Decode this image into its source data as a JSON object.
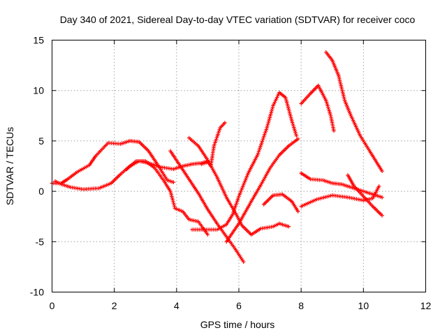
{
  "chart_data": {
    "type": "scatter",
    "title": "Day 340 of 2021, Sidereal Day-to-day VTEC variation (SDTVAR) for receiver coco",
    "xlabel": "GPS time / hours",
    "ylabel": "SDTVAR / TECUs",
    "xlim": [
      0,
      12
    ],
    "ylim": [
      -10,
      15
    ],
    "xticks": [
      0,
      2,
      4,
      6,
      8,
      10,
      12
    ],
    "yticks": [
      -10,
      -5,
      0,
      5,
      10,
      15
    ],
    "grid": true,
    "marker": "plus",
    "color": "#ff0000",
    "series": [
      {
        "name": "arc1",
        "points": [
          [
            0,
            0.8
          ],
          [
            0.3,
            0.8
          ],
          [
            0.5,
            1.2
          ],
          [
            0.8,
            1.9
          ],
          [
            1.2,
            2.6
          ],
          [
            1.4,
            3.5
          ],
          [
            1.8,
            4.8
          ],
          [
            2.2,
            4.7
          ],
          [
            2.5,
            5.0
          ],
          [
            2.8,
            4.9
          ],
          [
            3.1,
            4.0
          ],
          [
            3.4,
            2.6
          ],
          [
            3.7,
            1.1
          ],
          [
            3.9,
            0.9
          ]
        ]
      },
      {
        "name": "arc2",
        "points": [
          [
            0.1,
            1.0
          ],
          [
            0.3,
            0.7
          ],
          [
            0.6,
            0.4
          ],
          [
            1.0,
            0.2
          ],
          [
            1.5,
            0.3
          ],
          [
            1.9,
            0.8
          ],
          [
            2.2,
            1.7
          ],
          [
            2.5,
            2.5
          ],
          [
            2.8,
            3.0
          ],
          [
            3.1,
            2.8
          ],
          [
            3.5,
            2.4
          ],
          [
            3.9,
            2.2
          ],
          [
            4.2,
            2.5
          ],
          [
            4.5,
            2.7
          ],
          [
            4.8,
            2.8
          ],
          [
            5.0,
            3.0
          ]
        ]
      },
      {
        "name": "arc3",
        "points": [
          [
            2.4,
            2.2
          ],
          [
            2.7,
            3.0
          ],
          [
            3.0,
            3.0
          ],
          [
            3.3,
            2.3
          ],
          [
            3.6,
            1.0
          ],
          [
            3.8,
            0.0
          ],
          [
            3.95,
            -1.7
          ],
          [
            4.2,
            -2.0
          ],
          [
            4.4,
            -2.8
          ],
          [
            4.7,
            -3.0
          ],
          [
            5.0,
            -4.3
          ]
        ]
      },
      {
        "name": "arc4",
        "points": [
          [
            3.8,
            4.0
          ],
          [
            4.1,
            2.6
          ],
          [
            4.4,
            1.2
          ],
          [
            4.7,
            -0.2
          ],
          [
            5.0,
            -1.8
          ],
          [
            5.3,
            -3.2
          ],
          [
            5.6,
            -4.5
          ],
          [
            5.9,
            -5.8
          ],
          [
            6.15,
            -7.0
          ]
        ]
      },
      {
        "name": "arc5",
        "points": [
          [
            4.4,
            5.3
          ],
          [
            4.7,
            4.5
          ],
          [
            5.0,
            3.1
          ],
          [
            5.3,
            1.4
          ],
          [
            5.6,
            -0.6
          ],
          [
            5.9,
            -2.2
          ],
          [
            6.1,
            -3.4
          ],
          [
            6.4,
            -4.3
          ],
          [
            6.7,
            -3.7
          ],
          [
            7.1,
            -3.5
          ],
          [
            7.3,
            -3.2
          ],
          [
            7.6,
            -3.5
          ]
        ]
      },
      {
        "name": "arc6",
        "points": [
          [
            4.8,
            2.7
          ],
          [
            5.0,
            2.9
          ],
          [
            5.1,
            2.5
          ],
          [
            5.2,
            4.5
          ],
          [
            5.4,
            6.3
          ],
          [
            5.55,
            6.8
          ]
        ]
      },
      {
        "name": "arc7",
        "points": [
          [
            4.5,
            -3.8
          ],
          [
            4.9,
            -3.8
          ],
          [
            5.3,
            -3.8
          ],
          [
            5.6,
            -3.3
          ],
          [
            5.8,
            -2.3
          ],
          [
            6.0,
            -0.5
          ],
          [
            6.3,
            1.8
          ],
          [
            6.6,
            3.6
          ],
          [
            6.9,
            6.3
          ],
          [
            7.1,
            8.5
          ],
          [
            7.3,
            9.8
          ],
          [
            7.5,
            9.3
          ],
          [
            7.7,
            7.0
          ],
          [
            7.85,
            5.5
          ]
        ]
      },
      {
        "name": "arc8",
        "points": [
          [
            5.6,
            -5.0
          ],
          [
            6.0,
            -3.2
          ],
          [
            6.4,
            -1.0
          ],
          [
            6.7,
            0.6
          ],
          [
            7.0,
            2.3
          ],
          [
            7.3,
            3.6
          ],
          [
            7.6,
            4.5
          ],
          [
            7.9,
            5.2
          ]
        ]
      },
      {
        "name": "arc9",
        "points": [
          [
            6.8,
            -1.3
          ],
          [
            7.1,
            -0.4
          ],
          [
            7.4,
            -0.3
          ],
          [
            7.7,
            -1.0
          ],
          [
            7.9,
            -2.0
          ]
        ]
      },
      {
        "name": "arc10",
        "points": [
          [
            8.0,
            8.7
          ],
          [
            8.3,
            9.7
          ],
          [
            8.55,
            10.5
          ],
          [
            8.8,
            9.0
          ],
          [
            8.95,
            7.5
          ],
          [
            9.05,
            6.0
          ]
        ]
      },
      {
        "name": "arc11",
        "points": [
          [
            8.8,
            13.8
          ],
          [
            9.0,
            13.0
          ],
          [
            9.2,
            11.5
          ],
          [
            9.4,
            9.0
          ],
          [
            9.6,
            7.5
          ],
          [
            9.9,
            5.5
          ],
          [
            10.2,
            4.0
          ],
          [
            10.4,
            3.0
          ],
          [
            10.6,
            2.0
          ]
        ]
      },
      {
        "name": "arc12",
        "points": [
          [
            8.0,
            1.8
          ],
          [
            8.3,
            1.2
          ],
          [
            8.7,
            1.1
          ],
          [
            9.0,
            0.8
          ],
          [
            9.3,
            0.7
          ],
          [
            9.6,
            0.4
          ],
          [
            10.0,
            0.0
          ],
          [
            10.3,
            -0.3
          ],
          [
            10.6,
            -0.6
          ]
        ]
      },
      {
        "name": "arc13",
        "points": [
          [
            8.0,
            -1.5
          ],
          [
            8.5,
            -0.8
          ],
          [
            9.0,
            -0.4
          ],
          [
            9.5,
            -0.6
          ],
          [
            10.0,
            -0.9
          ],
          [
            10.3,
            -0.7
          ],
          [
            10.5,
            0.5
          ]
        ]
      },
      {
        "name": "arc14",
        "points": [
          [
            9.5,
            1.6
          ],
          [
            9.7,
            0.5
          ],
          [
            10.0,
            -0.5
          ],
          [
            10.3,
            -1.5
          ],
          [
            10.6,
            -2.4
          ]
        ]
      }
    ]
  }
}
